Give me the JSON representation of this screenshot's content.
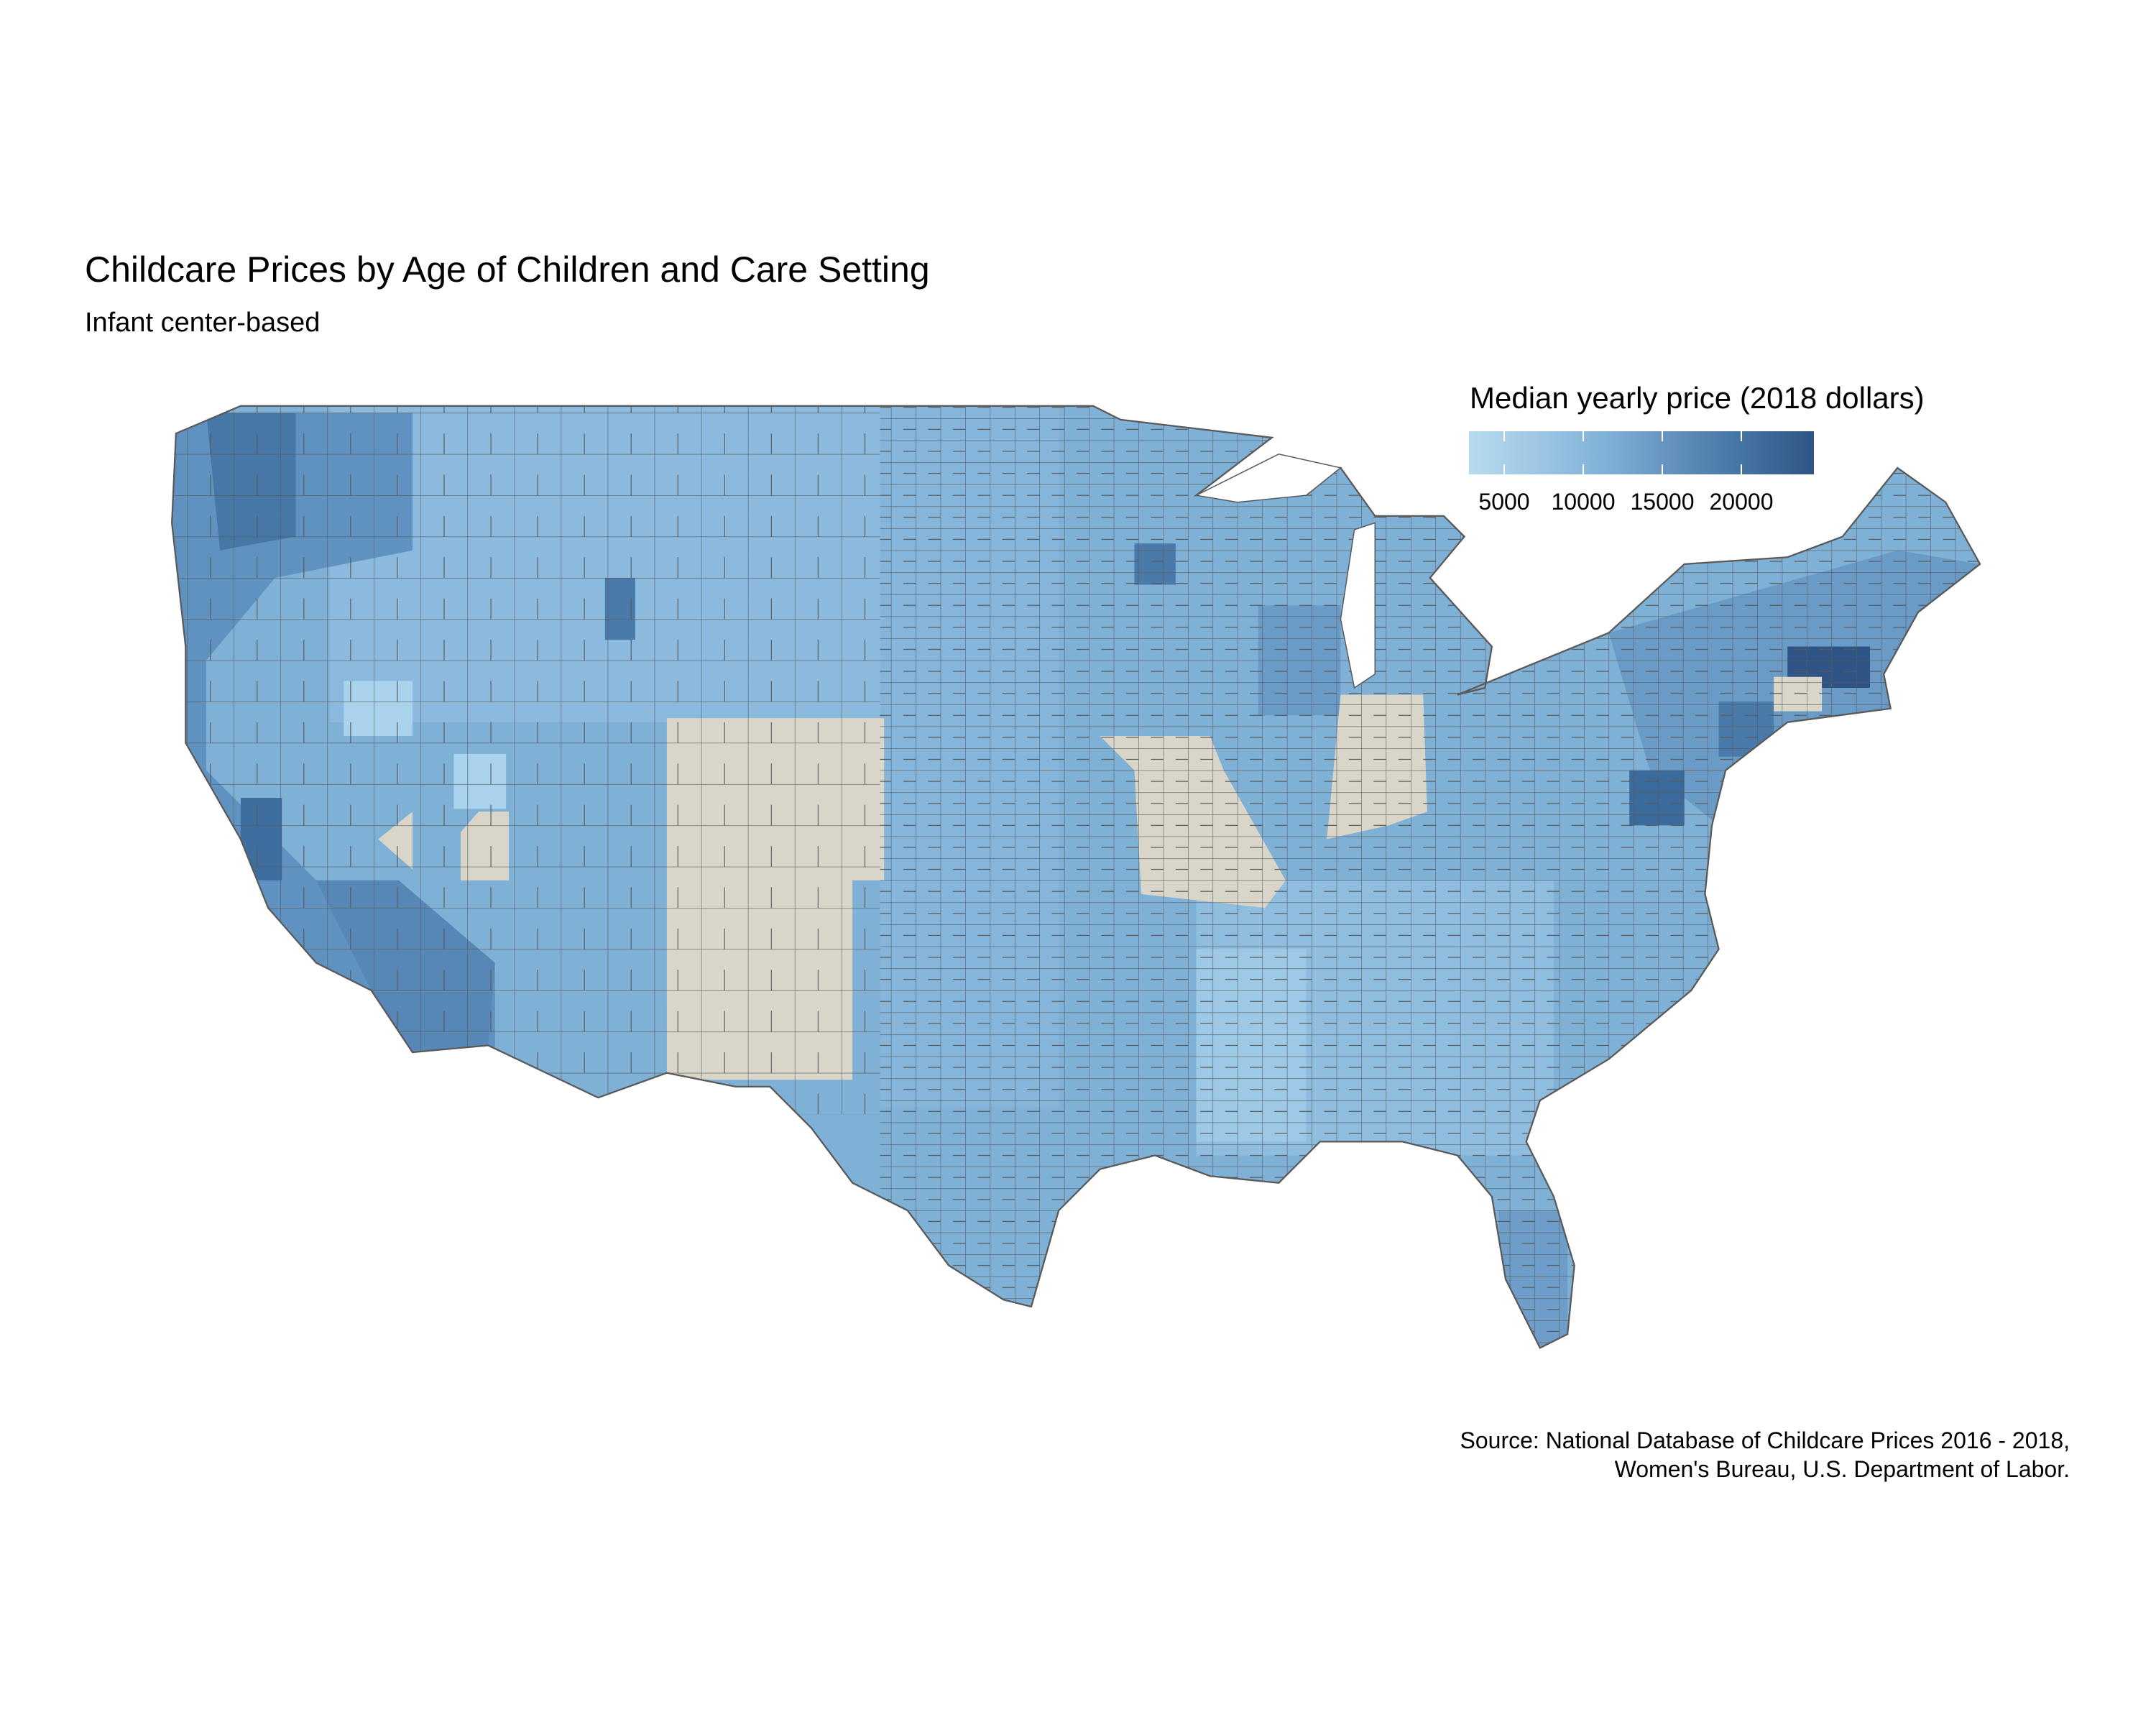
{
  "title": "Childcare Prices by Age of Children and Care Setting",
  "subtitle": "Infant center-based",
  "legend": {
    "title": "Median yearly price (2018 dollars)",
    "ticks": [
      "5000",
      "10000",
      "15000",
      "20000"
    ],
    "range": [
      1400,
      23500
    ],
    "colors": {
      "low": "#b6dbef",
      "high": "#2e5585",
      "missing": "#d9d6c9",
      "border": "#5a5a5a"
    }
  },
  "caption": {
    "line1": "Source: National Database of Childcare Prices 2016 - 2018,",
    "line2": "Women's Bureau, U.S. Department of Labor."
  },
  "chart_data": {
    "type": "choropleth",
    "title": "Childcare Prices by Age of Children and Care Setting",
    "subtitle": "Infant center-based",
    "geography": "US counties (contiguous)",
    "value": "Median yearly price (2018 dollars)",
    "scale_ticks": [
      5000,
      10000,
      15000,
      20000
    ],
    "missing_data_states": [
      "Colorado",
      "New Mexico",
      "Missouri",
      "Indiana",
      "Connecticut"
    ],
    "highest_regions": [
      "Massachusetts",
      "Washington DC area",
      "Puget Sound WA",
      "San Francisco Bay Area",
      "New York City area",
      "Minneapolis MN"
    ],
    "lowest_regions": [
      "Nevada",
      "Mississippi",
      "Alabama",
      "Arkansas",
      "Kentucky"
    ]
  }
}
